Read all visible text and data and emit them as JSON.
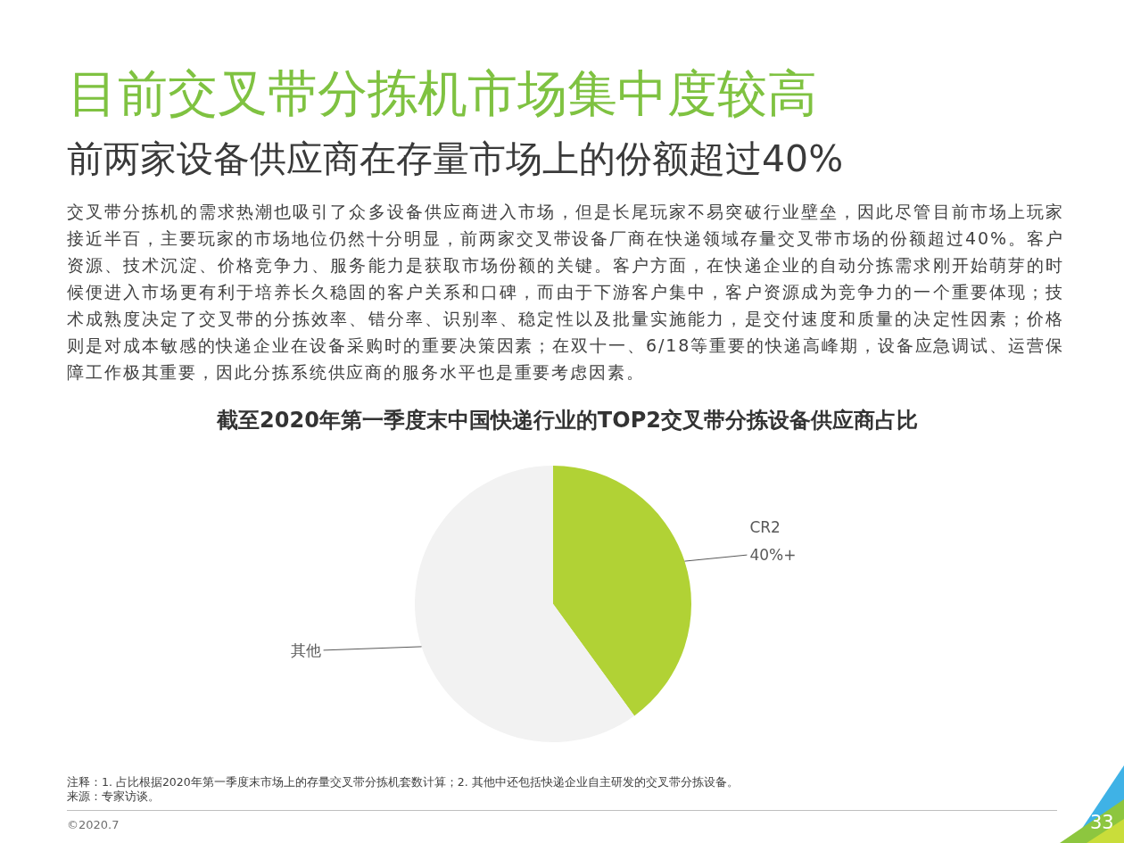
{
  "chart_data": {
    "type": "pie",
    "title": "目前交叉带分拣机市场集中度较高",
    "subtitle": "前两家设备供应商在存量市场上的份额超过40%",
    "categories": [
      "CR2",
      "其他"
    ],
    "values": [
      40,
      60
    ],
    "colors": [
      "#b1d235",
      "#f2f2f2"
    ],
    "value_labels": [
      "40%+",
      null
    ],
    "annotations": [
      "交叉带分拣机的需求热潮也吸引了众多设备供应商进入市场，但是长尾玩家不易突破行业壁垒，因此尽管目前市场上玩家接近半百，主要玩家的市场地位仍然十分明显，前两家交叉带设备厂商在快递领域存量交叉带市场的份额超过40%。客户资源、技术沉淀、价格竞争力、服务能力是获取市场份额的关键。客户方面，在快递企业的自动分拣需求刚开始萌芽的时候便进入市场更有利于培养长久稳固的客户关系和口碑，而由于下游客户集中，客户资源成为竞争力的一个重要体现；技术成熟度决定了交叉带的分拣效率、错分率、识别率、稳定性以及批量实施能力，是交付速度和质量的决定性因素；价格则是对成本敏感的快递企业在设备采购时的重要决策因素；在双十一、6/18等重要的快递高峰期，设备应急调试、运营保障工作极其重要，因此分拣系统供应商的服务水平也是重要考虑因素。",
      "截至2020年第一季度末中国快递行业的TOP2交叉带分拣设备供应商占比",
      "注释：1. 占比根据2020年第一季度末市场上的存量交叉带分拣机套数计算；2. 其他中还包括快递企业自主研发的交叉带分拣设备。",
      "来源：专家访谈。",
      "©2020.7",
      "33"
    ]
  }
}
